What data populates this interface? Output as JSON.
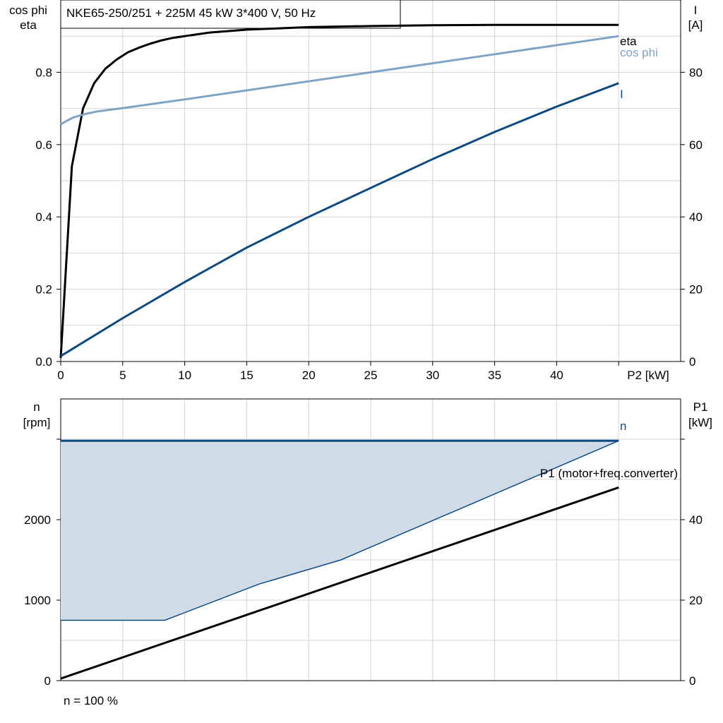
{
  "title": "NKE65-250/251 + 225M   45 kW   3*400 V, 50 Hz",
  "footnote": "n = 100 %",
  "colors": {
    "eta": "#000000",
    "cosphi": "#7ea3c4",
    "current": "#0d4a82",
    "n": "#0d4a82",
    "p1": "#000000",
    "fill": "#cfdbe7"
  },
  "chart_data": [
    {
      "type": "line",
      "left_axis": {
        "label_line1": "cos phi",
        "label_line2": "eta",
        "ticks": [
          "0.0",
          "0.2",
          "0.4",
          "0.6",
          "0.8"
        ],
        "range": [
          0,
          1.0
        ]
      },
      "right_axis": {
        "label_line1": "I",
        "label_line2": "[A]",
        "ticks": [
          "0",
          "20",
          "40",
          "60",
          "80"
        ],
        "range": [
          0,
          100
        ]
      },
      "x_axis": {
        "label": "P2 [kW]",
        "ticks": [
          "0",
          "5",
          "10",
          "15",
          "20",
          "25",
          "30",
          "35",
          "40"
        ],
        "range": [
          0,
          50
        ]
      },
      "series": [
        {
          "name": "eta",
          "axis": "left",
          "x": [
            0,
            0.9,
            1.8,
            2.7,
            3.6,
            4.5,
            5.4,
            6.3,
            7.2,
            8.1,
            9,
            10,
            12,
            15,
            20,
            25,
            30,
            35,
            40,
            45
          ],
          "y": [
            0.01,
            0.54,
            0.7,
            0.77,
            0.81,
            0.835,
            0.855,
            0.868,
            0.879,
            0.888,
            0.895,
            0.9,
            0.91,
            0.918,
            0.925,
            0.928,
            0.93,
            0.931,
            0.931,
            0.931
          ]
        },
        {
          "name": "cos phi",
          "axis": "left",
          "x": [
            0,
            0.5,
            1,
            2,
            3,
            5,
            10,
            15,
            20,
            25,
            30,
            35,
            40,
            45
          ],
          "y": [
            0.656,
            0.666,
            0.675,
            0.685,
            0.692,
            0.701,
            0.725,
            0.75,
            0.775,
            0.8,
            0.825,
            0.85,
            0.875,
            0.9
          ]
        },
        {
          "name": "I",
          "axis": "right",
          "x": [
            0,
            5,
            10,
            15,
            20,
            25,
            30,
            35,
            40,
            45
          ],
          "y": [
            1.5,
            12,
            22,
            31.5,
            40,
            48,
            56,
            63.5,
            70.5,
            77
          ]
        }
      ]
    },
    {
      "type": "area",
      "left_axis": {
        "label_line1": "n",
        "label_line2": "[rpm]",
        "ticks": [
          "0",
          "1000",
          "2000"
        ],
        "range": [
          0,
          3500
        ]
      },
      "right_axis": {
        "label_line1": "P1",
        "label_line2": "[kW]",
        "ticks": [
          "0",
          "20",
          "40"
        ],
        "range": [
          0,
          70
        ]
      },
      "x_axis": {
        "range": [
          0,
          50
        ]
      },
      "series": [
        {
          "name": "n",
          "axis": "left",
          "x": [
            0,
            45
          ],
          "y": [
            2980,
            2980
          ]
        },
        {
          "name": "P1 (motor+freq.converter)",
          "axis": "right",
          "x": [
            0,
            45
          ],
          "y": [
            0.5,
            48
          ]
        }
      ],
      "operating_area": {
        "x": [
          0,
          8.4,
          16,
          22.6,
          45,
          45,
          0
        ],
        "y": [
          750,
          750,
          1200,
          1500,
          2980,
          2980,
          2980
        ]
      }
    }
  ]
}
